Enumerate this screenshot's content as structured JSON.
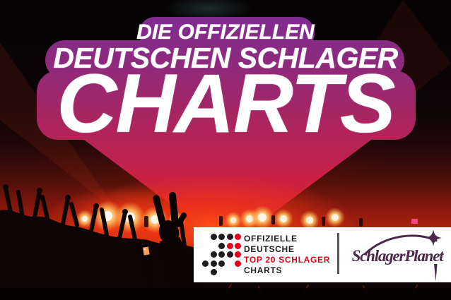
{
  "poster": {
    "badge": {
      "line1": "DIE OFFIZIELLEN",
      "line2": "DEUTSCHEN SCHLAGER",
      "line3": "CHARTS",
      "text_color": "#ffffff",
      "gradient_top": "#7e2c92",
      "gradient_middle": "#b2245a",
      "gradient_bottom": "#e53420"
    },
    "logo_box": {
      "background": "#ffffff",
      "official_charts": {
        "lines": [
          {
            "text": "OFFIZIELLE",
            "color": "#1d1d1b"
          },
          {
            "text": "DEUTSCHE",
            "color": "#1d1d1b"
          },
          {
            "text": "TOP 20 SCHLAGER",
            "color": "#e2001a"
          },
          {
            "text": "CHARTS",
            "color": "#1d1d1b"
          }
        ],
        "dot_matrix": {
          "rows": [
            ".bbbr",
            "..brr",
            ".bbbr",
            "bbb.r",
            ".b..."
          ],
          "black": "#1d1d1b",
          "red": "#e2001a"
        }
      },
      "divider_color": "#54575b",
      "partner": {
        "name": "SchlagerPlanet",
        "color": "#4b2949"
      }
    }
  }
}
